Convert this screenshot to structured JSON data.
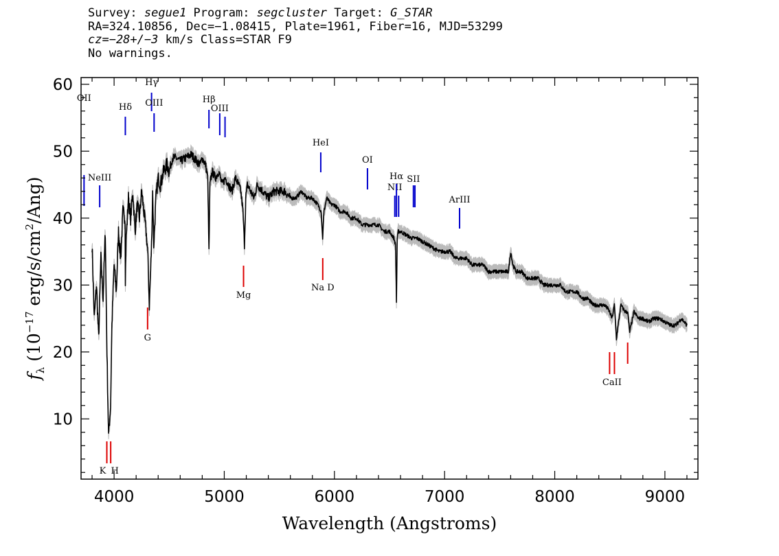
{
  "header": {
    "row1": {
      "survey_label": "Survey: ",
      "survey": "segue1",
      "program_label": " Program: ",
      "program": "segcluster",
      "target_label": " Target: ",
      "target": "G_STAR"
    },
    "row2": "RA=324.10856, Dec=−1.08415, Plate=1961, Fiber=16, MJD=53299",
    "row3": {
      "cz": "cz=−28+/−3",
      "rest": " km/s Class=STAR F9"
    },
    "row4": "No warnings."
  },
  "chart_data": {
    "type": "line",
    "title": "",
    "xlabel": "Wavelength (Angstroms)",
    "ylabel": "f_λ (10^-17 erg/s/cm^2/Ang)",
    "xlim": [
      3700,
      9300
    ],
    "ylim": [
      1,
      61
    ],
    "xticks": [
      4000,
      5000,
      6000,
      7000,
      8000,
      9000
    ],
    "yticks": [
      10,
      20,
      30,
      40,
      50,
      60
    ],
    "grid": false,
    "colors": {
      "flux": "#000000",
      "error_band": "#bbbbbb",
      "emission": "#0000cc",
      "absorption": "#dd0000"
    },
    "series": [
      {
        "x": [
          3800,
          3820,
          3840,
          3860,
          3880,
          3900,
          3920,
          3935,
          3950,
          3968,
          3980,
          4000,
          4020,
          4040,
          4060,
          4080,
          4100,
          4102,
          4110,
          4130,
          4150,
          4170,
          4190,
          4210,
          4230,
          4250,
          4270,
          4290,
          4305,
          4320,
          4340,
          4350,
          4360,
          4380,
          4400,
          4420,
          4450,
          4480,
          4500,
          4530,
          4560,
          4600,
          4650,
          4700,
          4750,
          4780,
          4800,
          4830,
          4850,
          4861,
          4870,
          4890,
          4920,
          4950,
          4980,
          5010,
          5040,
          5070,
          5100,
          5130,
          5150,
          5170,
          5183,
          5195,
          5210,
          5240,
          5270,
          5300,
          5350,
          5400,
          5450,
          5500,
          5550,
          5600,
          5650,
          5700,
          5750,
          5800,
          5850,
          5880,
          5893,
          5905,
          5930,
          5970,
          6000,
          6050,
          6100,
          6150,
          6200,
          6250,
          6300,
          6350,
          6400,
          6450,
          6500,
          6540,
          6555,
          6563,
          6570,
          6580,
          6600,
          6650,
          6700,
          6750,
          6800,
          6850,
          6900,
          6950,
          7000,
          7050,
          7100,
          7150,
          7200,
          7250,
          7300,
          7350,
          7400,
          7450,
          7500,
          7550,
          7580,
          7600,
          7620,
          7650,
          7700,
          7750,
          7800,
          7850,
          7900,
          7950,
          8000,
          8050,
          8100,
          8150,
          8200,
          8250,
          8300,
          8350,
          8400,
          8450,
          8480,
          8498,
          8520,
          8542,
          8560,
          8600,
          8640,
          8662,
          8680,
          8720,
          8760,
          8800,
          8850,
          8900,
          8950,
          9000,
          9050,
          9100,
          9150,
          9200
        ],
        "y": [
          36,
          25,
          30,
          22,
          34,
          28,
          38,
          20,
          7.5,
          12,
          24,
          33,
          29,
          38,
          34,
          41,
          40,
          31,
          37,
          43,
          40,
          44,
          38,
          42,
          40,
          44,
          41,
          38,
          35,
          27,
          36,
          44,
          36,
          43,
          46,
          45,
          47,
          48,
          47,
          49,
          49,
          48.5,
          49,
          49.5,
          48.5,
          48,
          49,
          48,
          46,
          35,
          45,
          47,
          46,
          47,
          45,
          46,
          45,
          44,
          46,
          45,
          44,
          41,
          36,
          43,
          45,
          44,
          43,
          45,
          44,
          43,
          44,
          44,
          44,
          43,
          43,
          44,
          43,
          43,
          42,
          41,
          37,
          41,
          43,
          42,
          42,
          41,
          41,
          40,
          40,
          39,
          39,
          39,
          39,
          38,
          38,
          37,
          36,
          27.5,
          37,
          38,
          38,
          37.5,
          37,
          37,
          36.5,
          36,
          35.5,
          35,
          35,
          35,
          34,
          34,
          34,
          33,
          33,
          33,
          32,
          32,
          32,
          32,
          32,
          35,
          33,
          32,
          32,
          31,
          31,
          31,
          30,
          30,
          30,
          30,
          29,
          29,
          29,
          28,
          28,
          27,
          27,
          27,
          26.5,
          26,
          25,
          27,
          22,
          27,
          26,
          26,
          23,
          26,
          25,
          25,
          24.5,
          25,
          25,
          24.5,
          24,
          24,
          25,
          24
        ]
      }
    ],
    "emission_lines": [
      {
        "label": "OII",
        "wavelength": 3727
      },
      {
        "label": "NeIII",
        "wavelength": 3869
      },
      {
        "label": "Hδ",
        "wavelength": 4102
      },
      {
        "label": "Hγ",
        "wavelength": 4340
      },
      {
        "label": "OIII",
        "wavelength": 4363
      },
      {
        "label": "Hβ",
        "wavelength": 4861
      },
      {
        "label": "OIII",
        "wavelength": 4959
      },
      {
        "label": "",
        "wavelength": 5007
      },
      {
        "label": "HeI",
        "wavelength": 5876
      },
      {
        "label": "OI",
        "wavelength": 6300
      },
      {
        "label": "NII",
        "wavelength": 6548
      },
      {
        "label": "Hα",
        "wavelength": 6563
      },
      {
        "label": "NII",
        "wavelength": 6583
      },
      {
        "label": "SII",
        "wavelength": 6717
      },
      {
        "label": "",
        "wavelength": 6731
      },
      {
        "label": "ArIII",
        "wavelength": 7136
      }
    ],
    "absorption_lines": [
      {
        "label": "K",
        "wavelength": 3934
      },
      {
        "label": "H",
        "wavelength": 3969
      },
      {
        "label": "G",
        "wavelength": 4304
      },
      {
        "label": "Mg",
        "wavelength": 5175
      },
      {
        "label": "Na D",
        "wavelength": 5894
      },
      {
        "label": "CaII",
        "wavelength": 8498
      },
      {
        "label": "",
        "wavelength": 8542
      },
      {
        "label": "",
        "wavelength": 8662
      }
    ]
  }
}
